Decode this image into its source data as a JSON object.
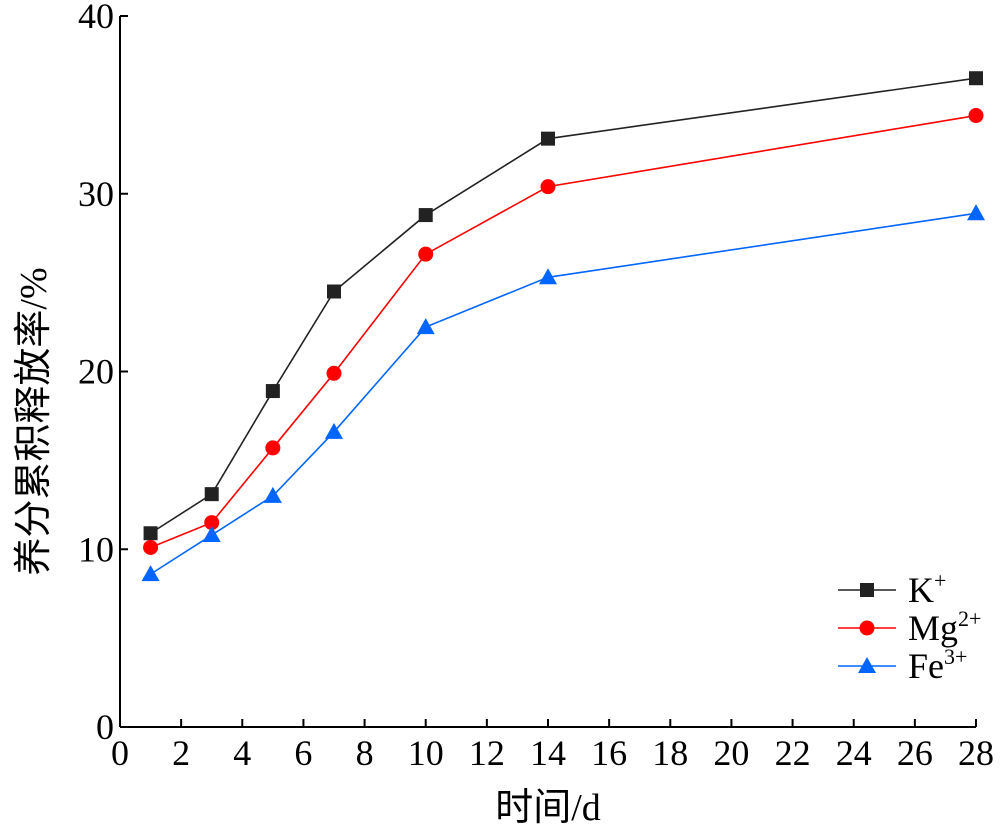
{
  "chart_data": {
    "type": "line",
    "title": "",
    "xlabel": "时间/d",
    "ylabel": "养分累积释放率/%",
    "xlim": [
      0,
      28
    ],
    "ylim": [
      0,
      40
    ],
    "xticks": [
      0,
      2,
      4,
      6,
      8,
      10,
      12,
      14,
      16,
      18,
      20,
      22,
      24,
      26,
      28
    ],
    "yticks": [
      0,
      10,
      20,
      30,
      40
    ],
    "grid": false,
    "legend_position": "bottom-right",
    "x": [
      1,
      3,
      5,
      7,
      10,
      14,
      28
    ],
    "series": [
      {
        "name": "K+",
        "label_base": "K",
        "label_sup": "+",
        "color": "#222222",
        "marker": "square",
        "values": [
          10.9,
          13.1,
          18.9,
          24.5,
          28.8,
          33.1,
          36.5
        ]
      },
      {
        "name": "Mg2+",
        "label_base": "Mg",
        "label_sup": "2+",
        "color": "#ff0000",
        "marker": "circle",
        "values": [
          10.1,
          11.5,
          15.7,
          19.9,
          26.6,
          30.4,
          34.4
        ]
      },
      {
        "name": "Fe3+",
        "label_base": "Fe",
        "label_sup": "3+",
        "color": "#0066ff",
        "marker": "triangle",
        "values": [
          8.6,
          10.8,
          13.0,
          16.6,
          22.5,
          25.3,
          28.9
        ]
      }
    ]
  }
}
